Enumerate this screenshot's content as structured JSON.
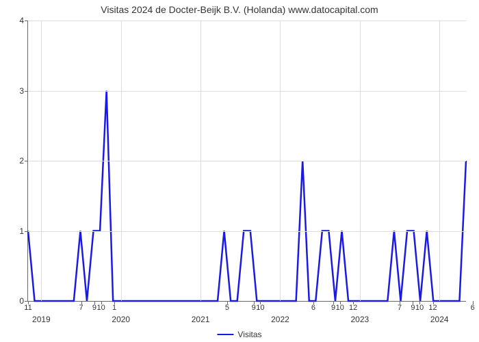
{
  "chart": {
    "type": "line",
    "title": "Visitas 2024 de Docter-Beijk B.V. (Holanda) www.datocapital.com",
    "title_fontsize": 14,
    "background_color": "#ffffff",
    "grid_color": "#dddddd",
    "axis_color": "#666666",
    "tick_fontsize": 12,
    "line_color": "#1a1ae6",
    "line_width": 2.5,
    "ylim": [
      0,
      4
    ],
    "yticks": [
      0,
      1,
      2,
      3,
      4
    ],
    "x_range_months": 66,
    "x_month_ticks": [
      {
        "m": 0,
        "label": "11"
      },
      {
        "m": 8,
        "label": "7"
      },
      {
        "m": 10,
        "label": "9"
      },
      {
        "m": 11,
        "label": "10"
      },
      {
        "m": 13,
        "label": "1"
      },
      {
        "m": 30,
        "label": "5"
      },
      {
        "m": 34,
        "label": "9"
      },
      {
        "m": 35,
        "label": "10"
      },
      {
        "m": 43,
        "label": "6"
      },
      {
        "m": 46,
        "label": "9"
      },
      {
        "m": 47,
        "label": "10"
      },
      {
        "m": 49,
        "label": "12"
      },
      {
        "m": 56,
        "label": "7"
      },
      {
        "m": 58,
        "label": "9"
      },
      {
        "m": 59,
        "label": "10"
      },
      {
        "m": 61,
        "label": "12"
      },
      {
        "m": 67,
        "label": "6"
      }
    ],
    "x_year_ticks": [
      {
        "m": 2,
        "label": "2019"
      },
      {
        "m": 14,
        "label": "2020"
      },
      {
        "m": 26,
        "label": "2021"
      },
      {
        "m": 38,
        "label": "2022"
      },
      {
        "m": 50,
        "label": "2023"
      },
      {
        "m": 62,
        "label": "2024"
      }
    ],
    "series": {
      "name": "Visitas",
      "values": [
        1,
        0,
        0,
        0,
        0,
        0,
        0,
        0,
        1,
        0,
        1,
        1,
        3,
        0,
        0,
        0,
        0,
        0,
        0,
        0,
        0,
        0,
        0,
        0,
        0,
        0,
        0,
        0,
        0,
        0,
        1,
        0,
        0,
        1,
        1,
        0,
        0,
        0,
        0,
        0,
        0,
        0,
        2,
        0,
        0,
        1,
        1,
        0,
        1,
        0,
        0,
        0,
        0,
        0,
        0,
        0,
        1,
        0,
        1,
        1,
        0,
        1,
        0,
        0,
        0,
        0,
        0,
        2
      ]
    },
    "legend_label": "Visitas"
  }
}
